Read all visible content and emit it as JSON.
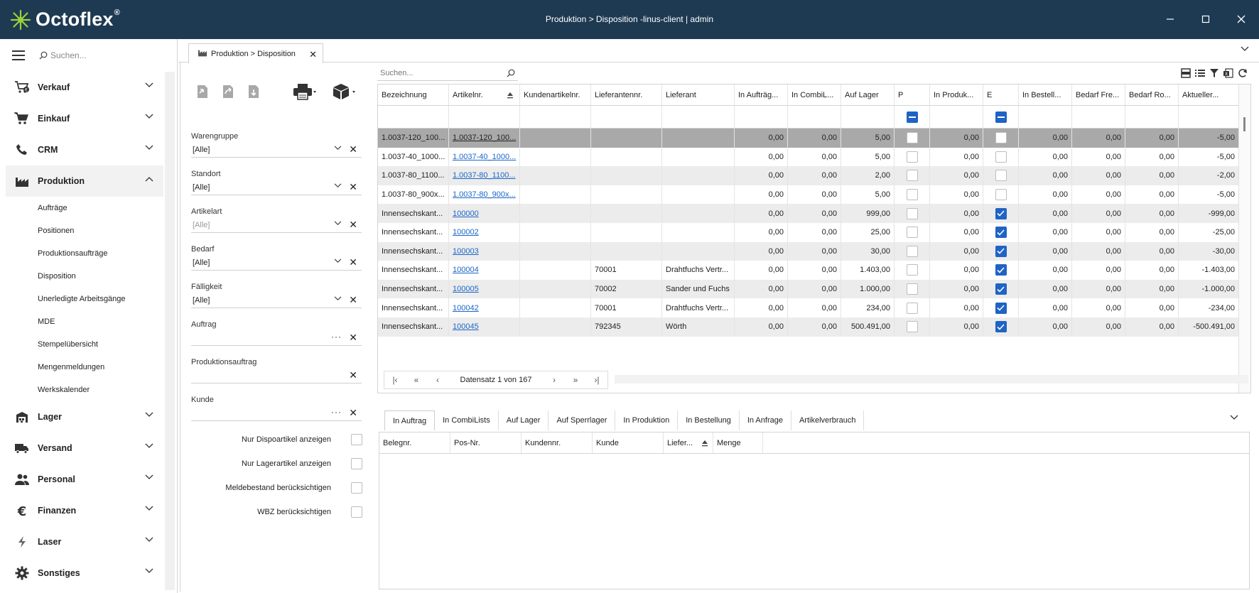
{
  "window": {
    "logo_text": "Octoflex",
    "logo_reg": "®",
    "title": "Produktion > Disposition -linus-client | admin"
  },
  "sidebar": {
    "search_placeholder": "Suchen...",
    "items": [
      {
        "label": "Verkauf",
        "icon": "cart-euro-icon"
      },
      {
        "label": "Einkauf",
        "icon": "cart-icon"
      },
      {
        "label": "CRM",
        "icon": "phone-icon"
      },
      {
        "label": "Produktion",
        "icon": "factory-icon"
      },
      {
        "label": "Lager",
        "icon": "warehouse-icon"
      },
      {
        "label": "Versand",
        "icon": "truck-icon"
      },
      {
        "label": "Personal",
        "icon": "people-icon"
      },
      {
        "label": "Finanzen",
        "icon": "euro-icon"
      },
      {
        "label": "Laser",
        "icon": "bolt-icon"
      },
      {
        "label": "Sonstiges",
        "icon": "gear-icon"
      }
    ],
    "produktion_sub": [
      "Aufträge",
      "Positionen",
      "Produktionsaufträge",
      "Disposition",
      "Unerledigte Arbeitsgänge",
      "MDE",
      "Stempelübersicht",
      "Mengenmeldungen",
      "Werkskalender"
    ]
  },
  "doc_tab": {
    "label": "Produktion > Disposition"
  },
  "filters": {
    "warengruppe": {
      "label": "Warengruppe",
      "value": "[Alle]"
    },
    "standort": {
      "label": "Standort",
      "value": "[Alle]"
    },
    "artikelart": {
      "label": "Artikelart",
      "value": "[Alle]"
    },
    "bedarf": {
      "label": "Bedarf",
      "value": "[Alle]"
    },
    "faelligkeit": {
      "label": "Fälligkeit",
      "value": "[Alle]"
    },
    "auftrag": {
      "label": "Auftrag",
      "value": ""
    },
    "produktionsauftrag": {
      "label": "Produktionsauftrag",
      "value": ""
    },
    "kunde": {
      "label": "Kunde",
      "value": ""
    },
    "checks": [
      {
        "label": "Nur Dispoartikel anzeigen"
      },
      {
        "label": "Nur Lagerartikel anzeigen"
      },
      {
        "label": "Meldebestand berücksichtigen"
      },
      {
        "label": "WBZ berücksichtigen"
      }
    ]
  },
  "grid": {
    "search_placeholder": "Suchen...",
    "columns": [
      "Bezeichnung",
      "Artikelnr.",
      "Kundenartikelnr.",
      "Lieferantennr.",
      "Lieferant",
      "In Aufträg...",
      "In CombiL...",
      "Auf Lager",
      "P",
      "In Produk...",
      "E",
      "In Bestell...",
      "Bedarf Fre...",
      "Bedarf Ro...",
      "Aktueller..."
    ],
    "rows": [
      {
        "bez": "1.0037-120_100...",
        "art": "1.0037-120_100...",
        "kart": "",
        "lnr": "",
        "lief": "",
        "auf": "0,00",
        "combi": "0,00",
        "lager": "5,00",
        "p": false,
        "prod": "0,00",
        "e": false,
        "best": "0,00",
        "bfre": "0,00",
        "bro": "0,00",
        "akt": "-5,00"
      },
      {
        "bez": "1.0037-40_1000...",
        "art": "1.0037-40_1000...",
        "kart": "",
        "lnr": "",
        "lief": "",
        "auf": "0,00",
        "combi": "0,00",
        "lager": "5,00",
        "p": false,
        "prod": "0,00",
        "e": false,
        "best": "0,00",
        "bfre": "0,00",
        "bro": "0,00",
        "akt": "-5,00"
      },
      {
        "bez": "1.0037-80_1100...",
        "art": "1.0037-80_1100...",
        "kart": "",
        "lnr": "",
        "lief": "",
        "auf": "0,00",
        "combi": "0,00",
        "lager": "2,00",
        "p": false,
        "prod": "0,00",
        "e": false,
        "best": "0,00",
        "bfre": "0,00",
        "bro": "0,00",
        "akt": "-2,00"
      },
      {
        "bez": "1.0037-80_900x...",
        "art": "1.0037-80_900x...",
        "kart": "",
        "lnr": "",
        "lief": "",
        "auf": "0,00",
        "combi": "0,00",
        "lager": "5,00",
        "p": false,
        "prod": "0,00",
        "e": false,
        "best": "0,00",
        "bfre": "0,00",
        "bro": "0,00",
        "akt": "-5,00"
      },
      {
        "bez": "Innensechskant...",
        "art": "100000",
        "kart": "",
        "lnr": "",
        "lief": "",
        "auf": "0,00",
        "combi": "0,00",
        "lager": "999,00",
        "p": false,
        "prod": "0,00",
        "e": true,
        "best": "0,00",
        "bfre": "0,00",
        "bro": "0,00",
        "akt": "-999,00"
      },
      {
        "bez": "Innensechskant...",
        "art": "100002",
        "kart": "",
        "lnr": "",
        "lief": "",
        "auf": "0,00",
        "combi": "0,00",
        "lager": "25,00",
        "p": false,
        "prod": "0,00",
        "e": true,
        "best": "0,00",
        "bfre": "0,00",
        "bro": "0,00",
        "akt": "-25,00"
      },
      {
        "bez": "Innensechskant...",
        "art": "100003",
        "kart": "",
        "lnr": "",
        "lief": "",
        "auf": "0,00",
        "combi": "0,00",
        "lager": "30,00",
        "p": false,
        "prod": "0,00",
        "e": true,
        "best": "0,00",
        "bfre": "0,00",
        "bro": "0,00",
        "akt": "-30,00"
      },
      {
        "bez": "Innensechskant...",
        "art": "100004",
        "kart": "",
        "lnr": "70001",
        "lief": "Drahtfuchs Vertr...",
        "auf": "0,00",
        "combi": "0,00",
        "lager": "1.403,00",
        "p": false,
        "prod": "0,00",
        "e": true,
        "best": "0,00",
        "bfre": "0,00",
        "bro": "0,00",
        "akt": "-1.403,00"
      },
      {
        "bez": "Innensechskant...",
        "art": "100005",
        "kart": "",
        "lnr": "70002",
        "lief": "Sander und Fuchs",
        "auf": "0,00",
        "combi": "0,00",
        "lager": "1.000,00",
        "p": false,
        "prod": "0,00",
        "e": true,
        "best": "0,00",
        "bfre": "0,00",
        "bro": "0,00",
        "akt": "-1.000,00"
      },
      {
        "bez": "Innensechskant...",
        "art": "100042",
        "kart": "",
        "lnr": "70001",
        "lief": "Drahtfuchs Vertr...",
        "auf": "0,00",
        "combi": "0,00",
        "lager": "234,00",
        "p": false,
        "prod": "0,00",
        "e": true,
        "best": "0,00",
        "bfre": "0,00",
        "bro": "0,00",
        "akt": "-234,00"
      },
      {
        "bez": "Innensechskant...",
        "art": "100045",
        "kart": "",
        "lnr": "792345",
        "lief": "Wörth",
        "auf": "0,00",
        "combi": "0,00",
        "lager": "500.491,00",
        "p": false,
        "prod": "0,00",
        "e": true,
        "best": "0,00",
        "bfre": "0,00",
        "bro": "0,00",
        "akt": "-500.491,00"
      }
    ],
    "pager_text": "Datensatz 1 von 167"
  },
  "bottom": {
    "tabs": [
      "In Auftrag",
      "In CombiLists",
      "Auf Lager",
      "Auf Sperrlager",
      "In Produktion",
      "In Bestellung",
      "In Anfrage",
      "Artikelverbrauch"
    ],
    "columns": [
      "Belegnr.",
      "Pos-Nr.",
      "Kundennr.",
      "Kunde",
      "Liefer...",
      "Menge"
    ]
  },
  "colors": {
    "titlebar": "#1e3a52",
    "accent": "#1f63c6",
    "logo": "#8bc34a"
  }
}
